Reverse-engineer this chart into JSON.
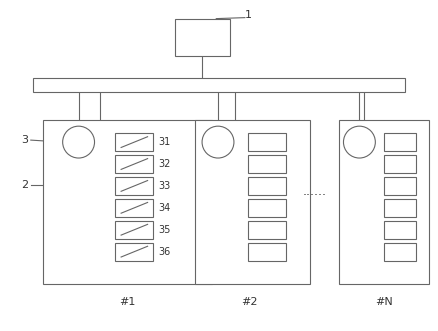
{
  "bg_color": "#ffffff",
  "line_color": "#666666",
  "fig_width": 4.38,
  "fig_height": 3.31,
  "dpi": 100,
  "sw_labels": [
    "31",
    "32",
    "33",
    "34",
    "35",
    "36"
  ],
  "bottom_labels": [
    "#1",
    "#2",
    "#N"
  ],
  "dots": "......",
  "label1": "1",
  "label2": "2",
  "label3": "3"
}
